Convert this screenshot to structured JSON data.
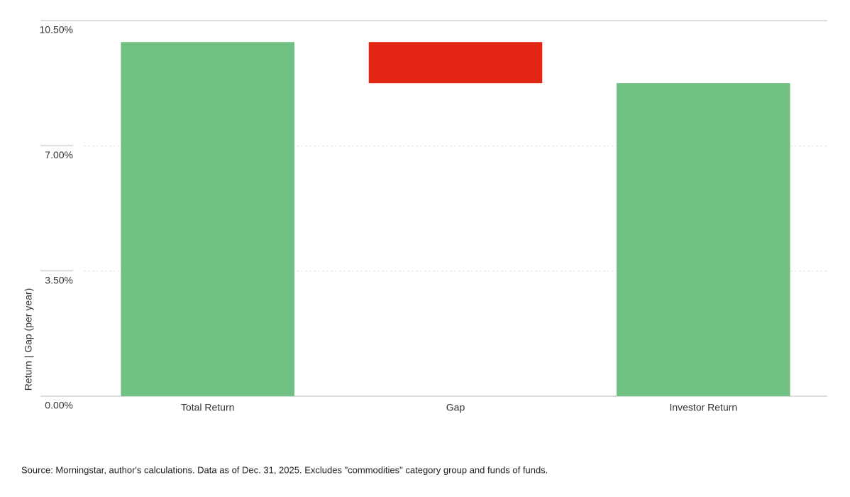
{
  "chart_data": {
    "type": "waterfall",
    "categories": [
      "Total Return",
      "Gap",
      "Investor Return"
    ],
    "values": [
      9.9,
      -1.15,
      8.75
    ],
    "colors": [
      "#70bf83",
      "#e32614",
      "#70bf83"
    ],
    "ylabel": "Return | Gap (per year)",
    "ylim": [
      0,
      10.5
    ],
    "yticks": [
      {
        "value": 0,
        "label": "0.00%"
      },
      {
        "value": 3.5,
        "label": "3.50%"
      },
      {
        "value": 7,
        "label": "7.00%"
      },
      {
        "value": 10.5,
        "label": "10.50%"
      }
    ],
    "grid": true,
    "source": "Source: Morningstar, author's calculations. Data as of Dec. 31, 2025. Excludes \"commodities\" category group and funds of funds."
  }
}
